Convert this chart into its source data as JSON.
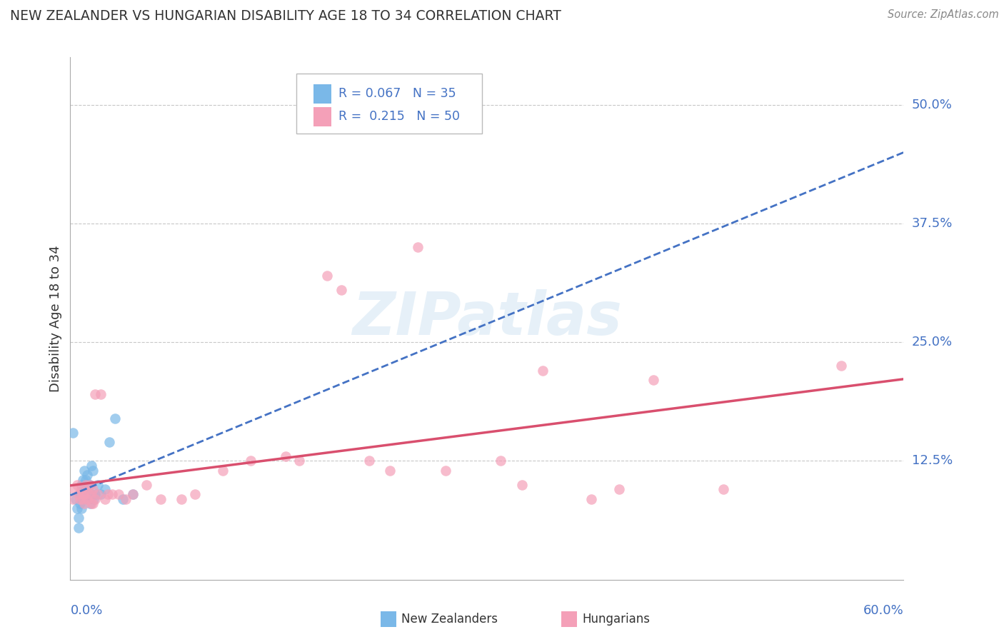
{
  "title": "NEW ZEALANDER VS HUNGARIAN DISABILITY AGE 18 TO 34 CORRELATION CHART",
  "source": "Source: ZipAtlas.com",
  "ylabel": "Disability Age 18 to 34",
  "xlim": [
    0.0,
    0.6
  ],
  "ylim": [
    0.0,
    0.55
  ],
  "yticks": [
    0.0,
    0.125,
    0.25,
    0.375,
    0.5
  ],
  "ytick_labels": [
    "",
    "12.5%",
    "25.0%",
    "37.5%",
    "50.0%"
  ],
  "watermark": "ZIPatlas",
  "legend_r1": "R = 0.067",
  "legend_n1": "N = 35",
  "legend_r2": "R =  0.215",
  "legend_n2": "N = 50",
  "nz_color": "#7ab8e8",
  "hu_color": "#f4a0b8",
  "nz_line_color": "#4472c4",
  "hu_line_color": "#d94f6e",
  "background_color": "#ffffff",
  "grid_color": "#c8c8c8",
  "title_color": "#333333",
  "axis_label_color": "#4472c4",
  "nz_x": [
    0.002,
    0.004,
    0.005,
    0.006,
    0.006,
    0.007,
    0.007,
    0.008,
    0.008,
    0.009,
    0.009,
    0.009,
    0.01,
    0.01,
    0.01,
    0.011,
    0.011,
    0.012,
    0.012,
    0.013,
    0.013,
    0.014,
    0.014,
    0.015,
    0.015,
    0.016,
    0.017,
    0.018,
    0.02,
    0.022,
    0.025,
    0.028,
    0.032,
    0.038,
    0.045
  ],
  "nz_y": [
    0.155,
    0.085,
    0.075,
    0.065,
    0.055,
    0.08,
    0.09,
    0.1,
    0.075,
    0.085,
    0.095,
    0.105,
    0.09,
    0.1,
    0.115,
    0.095,
    0.105,
    0.11,
    0.09,
    0.085,
    0.1,
    0.1,
    0.08,
    0.09,
    0.12,
    0.115,
    0.085,
    0.09,
    0.1,
    0.09,
    0.095,
    0.145,
    0.17,
    0.085,
    0.09
  ],
  "hu_x": [
    0.002,
    0.003,
    0.005,
    0.006,
    0.007,
    0.008,
    0.009,
    0.009,
    0.01,
    0.01,
    0.011,
    0.012,
    0.013,
    0.014,
    0.015,
    0.015,
    0.016,
    0.016,
    0.018,
    0.018,
    0.02,
    0.022,
    0.025,
    0.027,
    0.03,
    0.035,
    0.04,
    0.045,
    0.055,
    0.065,
    0.08,
    0.09,
    0.11,
    0.13,
    0.155,
    0.165,
    0.185,
    0.195,
    0.215,
    0.23,
    0.25,
    0.27,
    0.31,
    0.325,
    0.34,
    0.375,
    0.395,
    0.42,
    0.47,
    0.555
  ],
  "hu_y": [
    0.085,
    0.095,
    0.1,
    0.09,
    0.085,
    0.095,
    0.085,
    0.09,
    0.08,
    0.09,
    0.1,
    0.085,
    0.09,
    0.1,
    0.08,
    0.09,
    0.095,
    0.08,
    0.085,
    0.195,
    0.09,
    0.195,
    0.085,
    0.09,
    0.09,
    0.09,
    0.085,
    0.09,
    0.1,
    0.085,
    0.085,
    0.09,
    0.115,
    0.125,
    0.13,
    0.125,
    0.32,
    0.305,
    0.125,
    0.115,
    0.35,
    0.115,
    0.125,
    0.1,
    0.22,
    0.085,
    0.095,
    0.21,
    0.095,
    0.225
  ]
}
